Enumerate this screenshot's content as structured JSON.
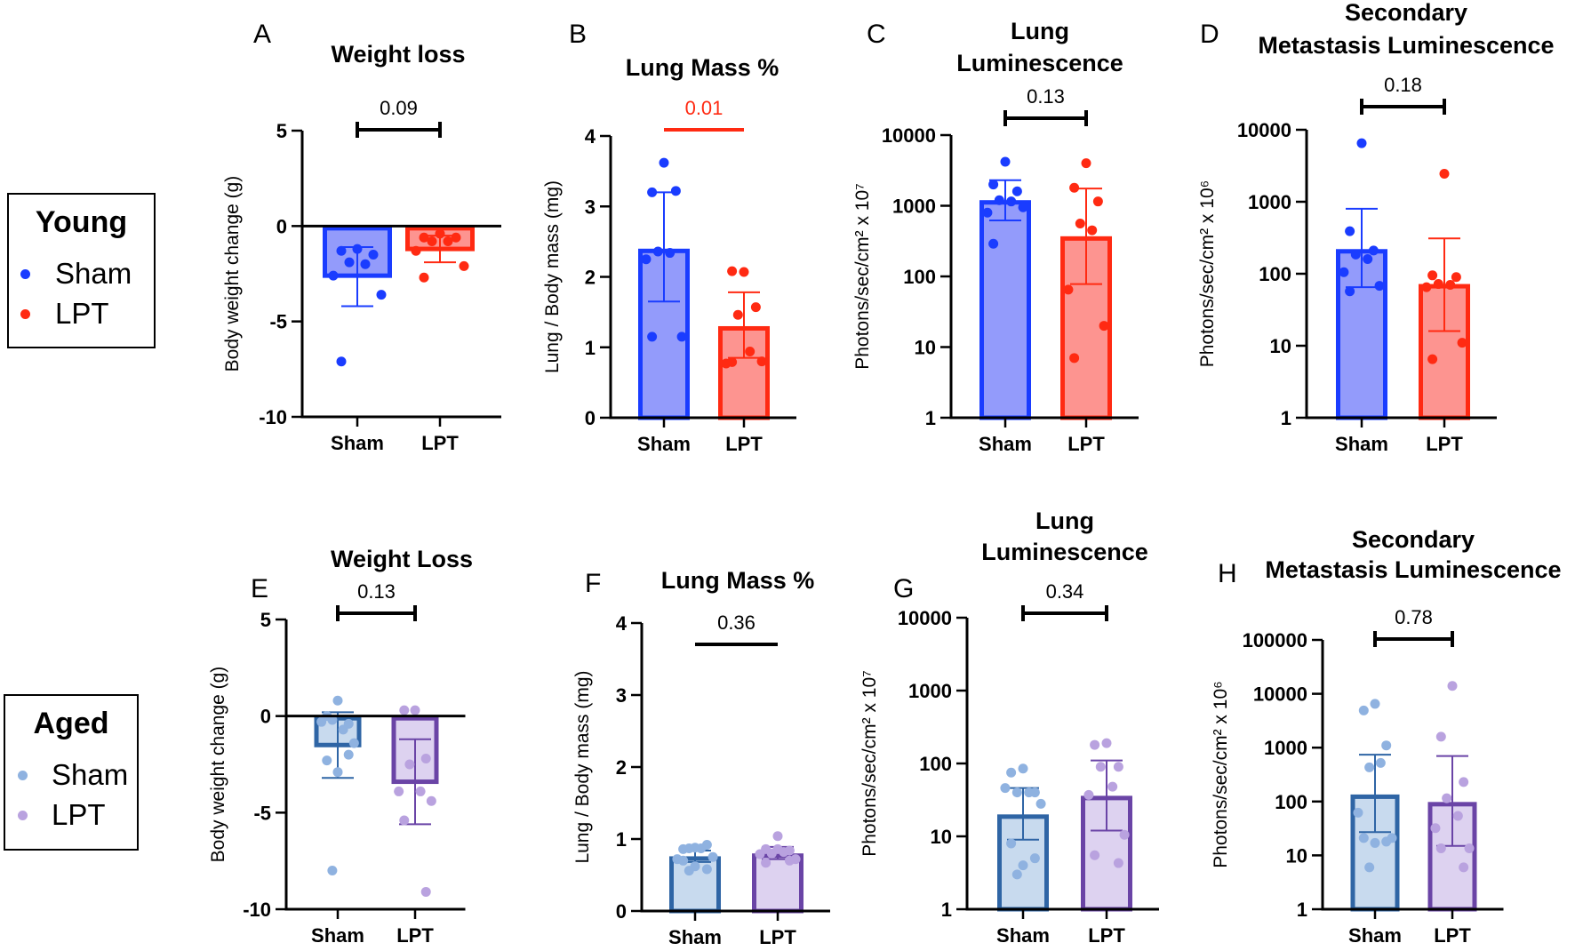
{
  "legends": [
    {
      "title": "Young",
      "items": [
        {
          "label": "Sham",
          "color": "#1a3cff"
        },
        {
          "label": "LPT",
          "color": "#ff2a12"
        }
      ]
    },
    {
      "title": "Aged",
      "items": [
        {
          "label": "Sham",
          "color": "#8fb2e0"
        },
        {
          "label": "LPT",
          "color": "#b9a2df"
        }
      ]
    }
  ],
  "colors": {
    "young_sham": {
      "edge": "#1a3cff",
      "fill": "#939bfb",
      "dot": "#1a3cff"
    },
    "young_lpt": {
      "edge": "#ff2a12",
      "fill": "#fd9490",
      "dot": "#ff2a12"
    },
    "aged_sham": {
      "edge": "#2f65a5",
      "fill": "#c8daee",
      "dot": "#8fb2e0"
    },
    "aged_lpt": {
      "edge": "#6a44a6",
      "fill": "#ddd2f0",
      "dot": "#b9a2df"
    },
    "significant": "#ff2a12",
    "neutral": "#000000"
  },
  "chart_data": [
    {
      "panel": "A",
      "type": "bar",
      "title": [
        "Weight loss"
      ],
      "ylabel": "Body weight change (g)",
      "scale": "linear",
      "ylim": [
        -10,
        5
      ],
      "yticks": [
        5,
        0,
        -5,
        -10
      ],
      "tick_labels": [
        "5",
        "0",
        "-5",
        "-10"
      ],
      "categories": [
        "Sham",
        "LPT"
      ],
      "palette": [
        "young_sham",
        "young_lpt"
      ],
      "series": [
        {
          "name": "Sham",
          "mean": -2.6,
          "sd_low": -4.2,
          "sd_high": -1.1,
          "points": [
            -1.2,
            -1.3,
            -1.5,
            -1.9,
            -2.0,
            -2.6,
            -3.6,
            -7.1
          ]
        },
        {
          "name": "LPT",
          "mean": -1.2,
          "sd_low": -1.9,
          "sd_high": -0.5,
          "points": [
            -0.4,
            -0.6,
            -0.6,
            -0.8,
            -0.8,
            -1.3,
            -2.1,
            -2.7
          ]
        }
      ],
      "pvalue": "0.09",
      "significant": false,
      "bracket": "capped"
    },
    {
      "panel": "B",
      "type": "bar",
      "title": [
        "Lung Mass %"
      ],
      "ylabel": "Lung / Body mass (mg)",
      "scale": "linear",
      "ylim": [
        0,
        4
      ],
      "yticks": [
        4,
        3,
        2,
        1,
        0
      ],
      "tick_labels": [
        "4",
        "3",
        "2",
        "1",
        "0"
      ],
      "categories": [
        "Sham",
        "LPT"
      ],
      "palette": [
        "young_sham",
        "young_lpt"
      ],
      "series": [
        {
          "name": "Sham",
          "mean": 2.4,
          "sd_low": 1.65,
          "sd_high": 3.2,
          "points": [
            3.62,
            3.2,
            3.22,
            2.36,
            2.34,
            2.25,
            1.15,
            1.15
          ]
        },
        {
          "name": "LPT",
          "mean": 1.3,
          "sd_low": 0.85,
          "sd_high": 1.78,
          "points": [
            2.07,
            2.08,
            1.57,
            1.46,
            0.94,
            0.77,
            0.8,
            0.79
          ]
        }
      ],
      "pvalue": "0.01",
      "significant": true,
      "bracket": "line"
    },
    {
      "panel": "C",
      "type": "bar",
      "title": [
        "Lung",
        "Luminescence"
      ],
      "ylabel": "Photons/sec/cm² x 10⁷",
      "scale": "log",
      "ylim": [
        1,
        10000
      ],
      "yticks": [
        10000,
        1000,
        100,
        10,
        1
      ],
      "tick_labels": [
        "10000",
        "1000",
        "100",
        "10",
        "1"
      ],
      "categories": [
        "Sham",
        "LPT"
      ],
      "palette": [
        "young_sham",
        "young_lpt"
      ],
      "series": [
        {
          "name": "Sham",
          "mean": 1200,
          "sd_low": 620,
          "sd_high": 2300,
          "points": [
            4200,
            2000,
            1600,
            1200,
            1150,
            800,
            950,
            290
          ]
        },
        {
          "name": "LPT",
          "mean": 370,
          "sd_low": 78,
          "sd_high": 1750,
          "points": [
            4000,
            1800,
            1150,
            560,
            450,
            65,
            20,
            7
          ]
        }
      ],
      "pvalue": "0.13",
      "significant": false,
      "bracket": "capped"
    },
    {
      "panel": "D",
      "type": "bar",
      "title": [
        "Secondary",
        "Metastasis Luminescence"
      ],
      "ylabel": "Photons/sec/cm² x 10⁶",
      "scale": "log",
      "ylim": [
        1,
        10000
      ],
      "yticks": [
        10000,
        1000,
        100,
        10,
        1
      ],
      "tick_labels": [
        "10000",
        "1000",
        "100",
        "10",
        "1"
      ],
      "categories": [
        "Sham",
        "LPT"
      ],
      "palette": [
        "young_sham",
        "young_lpt"
      ],
      "series": [
        {
          "name": "Sham",
          "mean": 220,
          "sd_low": 65,
          "sd_high": 800,
          "points": [
            6500,
            390,
            210,
            185,
            160,
            105,
            68,
            57
          ]
        },
        {
          "name": "LPT",
          "mean": 72,
          "sd_low": 16,
          "sd_high": 310,
          "points": [
            2450,
            95,
            90,
            72,
            70,
            65,
            11,
            6.5
          ]
        }
      ],
      "pvalue": "0.18",
      "significant": false,
      "bracket": "capped"
    },
    {
      "panel": "E",
      "type": "bar",
      "title": [
        "Weight Loss"
      ],
      "ylabel": "Body weight change (g)",
      "scale": "linear",
      "ylim": [
        -10,
        5
      ],
      "yticks": [
        5,
        0,
        -5,
        -10
      ],
      "tick_labels": [
        "5",
        "0",
        "-5",
        "-10"
      ],
      "categories": [
        "Sham",
        "LPT"
      ],
      "palette": [
        "aged_sham",
        "aged_lpt"
      ],
      "series": [
        {
          "name": "Sham",
          "mean": -1.5,
          "sd_low": -3.2,
          "sd_high": 0.2,
          "points": [
            0.8,
            0.0,
            -0.4,
            -0.2,
            -0.7,
            -0.3,
            -1.4,
            -2.3,
            -2.0,
            -2.9,
            -8.0
          ]
        },
        {
          "name": "LPT",
          "mean": -3.4,
          "sd_low": -5.6,
          "sd_high": -1.2,
          "points": [
            0.3,
            0.3,
            -2.2,
            -2.5,
            -3.9,
            -3.9,
            -4.4,
            -5.4,
            -9.1
          ]
        }
      ],
      "pvalue": "0.13",
      "significant": false,
      "bracket": "capped"
    },
    {
      "panel": "F",
      "type": "bar",
      "title": [
        "Lung Mass %"
      ],
      "ylabel": "Lung / Body mass (mg)",
      "scale": "linear",
      "ylim": [
        0,
        4
      ],
      "yticks": [
        4,
        3,
        2,
        1,
        0
      ],
      "tick_labels": [
        "4",
        "3",
        "2",
        "1",
        "0"
      ],
      "categories": [
        "Sham",
        "LPT"
      ],
      "palette": [
        "aged_sham",
        "aged_lpt"
      ],
      "series": [
        {
          "name": "Sham",
          "mean": 0.76,
          "sd_low": 0.68,
          "sd_high": 0.84,
          "points": [
            0.88,
            0.86,
            0.92,
            0.87,
            0.87,
            0.72,
            0.75,
            0.7,
            0.58,
            0.62,
            0.56
          ]
        },
        {
          "name": "LPT",
          "mean": 0.8,
          "sd_low": 0.72,
          "sd_high": 0.89,
          "points": [
            1.04,
            0.86,
            0.84,
            0.8,
            0.82,
            0.79,
            0.72,
            0.67,
            0.7,
            0.86
          ]
        }
      ],
      "pvalue": "0.36",
      "significant": false,
      "bracket": "line"
    },
    {
      "panel": "G",
      "type": "bar",
      "title": [
        "Lung",
        "Luminescence"
      ],
      "ylabel": "Photons/sec/cm² x 10⁷",
      "scale": "log",
      "ylim": [
        1,
        10000
      ],
      "yticks": [
        10000,
        1000,
        100,
        10,
        1
      ],
      "tick_labels": [
        "10000",
        "1000",
        "100",
        "10",
        "1"
      ],
      "categories": [
        "Sham",
        "LPT"
      ],
      "palette": [
        "aged_sham",
        "aged_lpt"
      ],
      "series": [
        {
          "name": "Sham",
          "mean": 20,
          "sd_low": 9,
          "sd_high": 46,
          "points": [
            85,
            75,
            40,
            40,
            40,
            46,
            28,
            8,
            5,
            4,
            3
          ]
        },
        {
          "name": "LPT",
          "mean": 36,
          "sd_low": 12,
          "sd_high": 110,
          "points": [
            190,
            180,
            90,
            90,
            48,
            37,
            10.5,
            5.5,
            4.3
          ]
        }
      ],
      "pvalue": "0.34",
      "significant": false,
      "bracket": "capped"
    },
    {
      "panel": "H",
      "type": "bar",
      "title": [
        "Secondary",
        "Metastasis Luminescence"
      ],
      "ylabel": "Photons/sec/cm² x 10⁶",
      "scale": "log",
      "ylim": [
        1,
        100000
      ],
      "yticks": [
        100000,
        10000,
        1000,
        100,
        10,
        1
      ],
      "tick_labels": [
        "100000",
        "10000",
        "1000",
        "100",
        "10",
        "1"
      ],
      "categories": [
        "Sham",
        "LPT"
      ],
      "palette": [
        "aged_sham",
        "aged_lpt"
      ],
      "series": [
        {
          "name": "Sham",
          "mean": 135,
          "sd_low": 27,
          "sd_high": 740,
          "points": [
            6500,
            4900,
            1100,
            430,
            520,
            62,
            21,
            21,
            18,
            17,
            6
          ]
        },
        {
          "name": "LPT",
          "mean": 98,
          "sd_low": 15,
          "sd_high": 700,
          "points": [
            14000,
            1600,
            230,
            115,
            54,
            32,
            13.5,
            13.5,
            6
          ]
        }
      ],
      "pvalue": "0.78",
      "significant": false,
      "bracket": "capped"
    }
  ]
}
